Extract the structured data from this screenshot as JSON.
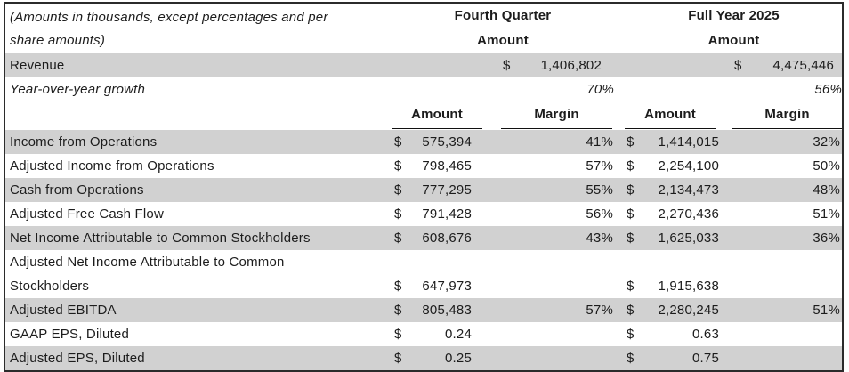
{
  "meta": {
    "note": "(Amounts in thousands, except percentages and per\nshare amounts)"
  },
  "header": {
    "q4": {
      "title": "Fourth Quarter",
      "subtitle": "Amount"
    },
    "fy": {
      "title": "Full Year 2025",
      "subtitle": "Amount"
    }
  },
  "revenue": {
    "label": "Revenue",
    "q4_currency": "$",
    "q4_amount": "1,406,802",
    "fy_currency": "$",
    "fy_amount": "4,475,446"
  },
  "growth": {
    "label": "Year-over-year growth",
    "q4": "70%",
    "fy": "56%"
  },
  "columns": {
    "q4_amount": "Amount",
    "q4_margin": "Margin",
    "fy_amount": "Amount",
    "fy_margin": "Margin"
  },
  "rows": [
    {
      "label": "Income from Operations",
      "q4_currency": "$",
      "q4_amount": "575,394",
      "q4_margin": "41%",
      "fy_currency": "$",
      "fy_amount": "1,414,015",
      "fy_margin": "32%"
    },
    {
      "label": "Adjusted Income from Operations",
      "q4_currency": "$",
      "q4_amount": "798,465",
      "q4_margin": "57%",
      "fy_currency": "$",
      "fy_amount": "2,254,100",
      "fy_margin": "50%"
    },
    {
      "label": "Cash from Operations",
      "q4_currency": "$",
      "q4_amount": "777,295",
      "q4_margin": "55%",
      "fy_currency": "$",
      "fy_amount": "2,134,473",
      "fy_margin": "48%"
    },
    {
      "label": "Adjusted Free Cash Flow",
      "q4_currency": "$",
      "q4_amount": "791,428",
      "q4_margin": "56%",
      "fy_currency": "$",
      "fy_amount": "2,270,436",
      "fy_margin": "51%"
    },
    {
      "label": "Net Income Attributable to Common Stockholders",
      "q4_currency": "$",
      "q4_amount": "608,676",
      "q4_margin": "43%",
      "fy_currency": "$",
      "fy_amount": "1,625,033",
      "fy_margin": "36%"
    },
    {
      "label": "Adjusted Net Income Attributable to Common\nStockholders",
      "q4_currency": "$",
      "q4_amount": "647,973",
      "q4_margin": "",
      "fy_currency": "$",
      "fy_amount": "1,915,638",
      "fy_margin": ""
    },
    {
      "label": "Adjusted EBITDA",
      "q4_currency": "$",
      "q4_amount": "805,483",
      "q4_margin": "57%",
      "fy_currency": "$",
      "fy_amount": "2,280,245",
      "fy_margin": "51%"
    },
    {
      "label": "GAAP EPS, Diluted",
      "q4_currency": "$",
      "q4_amount": "0.24",
      "q4_margin": "",
      "fy_currency": "$",
      "fy_amount": "0.63",
      "fy_margin": ""
    },
    {
      "label": "Adjusted EPS, Diluted",
      "q4_currency": "$",
      "q4_amount": "0.25",
      "q4_margin": "",
      "fy_currency": "$",
      "fy_amount": "0.75",
      "fy_margin": ""
    }
  ],
  "colors": {
    "stripe": "#d1d1d1",
    "border": "#2b2b2b",
    "rule": "#111111",
    "text": "#1c1c1c"
  }
}
